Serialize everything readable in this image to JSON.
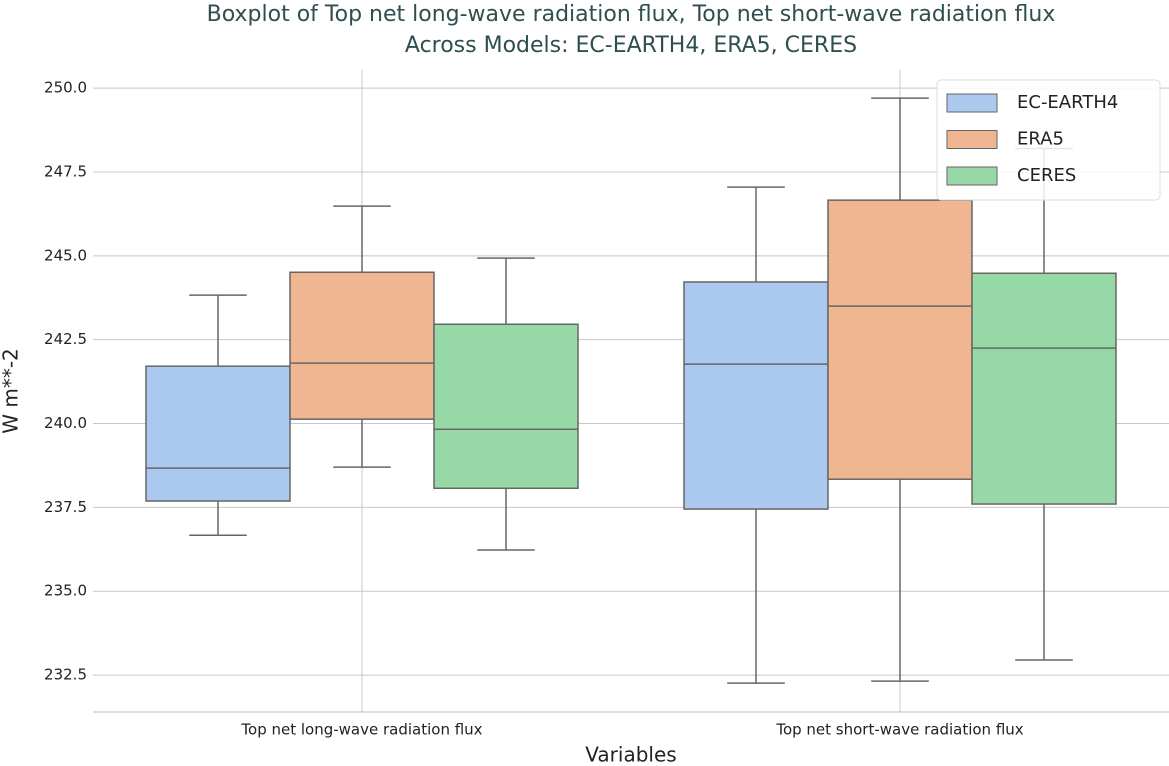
{
  "chart_data": {
    "type": "box",
    "title": "Boxplot of Top net long-wave radiation flux, Top net short-wave radiation flux",
    "subtitle": "Across Models: EC-EARTH4, ERA5, CERES",
    "x_label": "Variables",
    "y_label": "W m**-2",
    "categories": [
      "Top net long-wave radiation flux",
      "Top net short-wave radiation flux"
    ],
    "series": [
      {
        "name": "EC-EARTH4",
        "color": "#abc9ee",
        "values": [
          {
            "min": 236.67,
            "q1": 237.69,
            "median": 238.67,
            "q3": 241.71,
            "max": 243.83
          },
          {
            "min": 232.26,
            "q1": 237.45,
            "median": 241.77,
            "q3": 244.22,
            "max": 247.05
          }
        ]
      },
      {
        "name": "ERA5",
        "color": "#f0b692",
        "values": [
          {
            "min": 238.7,
            "q1": 240.13,
            "median": 241.8,
            "q3": 244.51,
            "max": 246.48
          },
          {
            "min": 232.32,
            "q1": 238.34,
            "median": 243.5,
            "q3": 246.66,
            "max": 249.7
          }
        ]
      },
      {
        "name": "CERES",
        "color": "#97d9a6",
        "values": [
          {
            "min": 236.23,
            "q1": 238.07,
            "median": 239.83,
            "q3": 242.96,
            "max": 244.93
          },
          {
            "min": 232.95,
            "q1": 237.6,
            "median": 242.25,
            "q3": 244.48,
            "max": 248.2
          }
        ]
      }
    ],
    "ylim": [
      231.4,
      250.54
    ],
    "yticks": [
      {
        "value": 232.5,
        "label": "232.5"
      },
      {
        "value": 235,
        "label": "235.0"
      },
      {
        "value": 237.5,
        "label": "237.5"
      },
      {
        "value": 240,
        "label": "240.0"
      },
      {
        "value": 242.5,
        "label": "242.5"
      },
      {
        "value": 245,
        "label": "245.0"
      },
      {
        "value": 247.5,
        "label": "247.5"
      },
      {
        "value": 250,
        "label": "250.0"
      }
    ],
    "grid": true,
    "legend": "upper right"
  }
}
